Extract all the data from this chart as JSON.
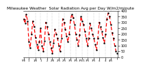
{
  "title": "Milwaukee Weather  Solar Radiation Avg per Day W/m2/minute",
  "title_fontsize": 4.2,
  "line_color": "red",
  "dot_color": "black",
  "background_color": "white",
  "ylim": [
    0,
    400
  ],
  "yticks": [
    0,
    50,
    100,
    150,
    200,
    250,
    300,
    350,
    400
  ],
  "ylabel_fontsize": 3.5,
  "xlabel_fontsize": 2.8,
  "values": [
    330,
    290,
    370,
    310,
    130,
    80,
    200,
    310,
    260,
    170,
    110,
    60,
    130,
    250,
    100,
    50,
    140,
    300,
    260,
    200,
    130,
    80,
    30,
    120,
    240,
    200,
    160,
    100,
    50,
    160,
    330,
    300,
    240,
    180,
    130,
    200,
    320,
    370,
    340,
    280,
    200,
    150,
    100,
    190,
    350,
    310,
    280,
    220,
    160,
    100,
    160,
    290,
    250,
    200,
    160,
    110,
    60,
    160,
    300,
    260,
    220,
    170,
    120,
    200,
    330,
    380,
    350,
    280,
    210,
    160,
    100,
    50,
    30
  ],
  "x_tick_positions": [
    0,
    4,
    9,
    13,
    18,
    22,
    27,
    31,
    36,
    40,
    45,
    49,
    54,
    58,
    63,
    67,
    72
  ],
  "x_tick_labels": [
    "5/E",
    "1",
    "1/E",
    "1",
    "2",
    "2/E",
    "2/5",
    "2/5",
    "3/5",
    "3/5",
    "3/5/1",
    "3/5",
    "3/5",
    "4",
    "4",
    "4/5",
    ""
  ],
  "vgrid_positions": [
    4,
    9,
    13,
    18,
    22,
    27,
    31,
    36,
    40,
    45,
    49,
    54,
    58,
    63,
    67
  ]
}
